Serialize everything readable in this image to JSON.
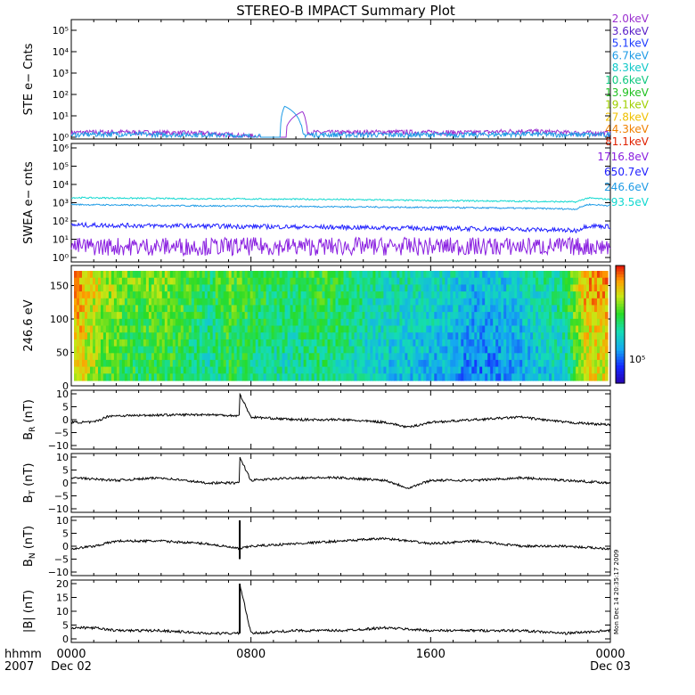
{
  "title": "STEREO-B IMPACT Summary Plot",
  "timestamp": "Mon Dec 14 20:35:17 2009",
  "x_axis": {
    "row_label": "hhmm",
    "year": "2007",
    "ticks": [
      {
        "time": "0000",
        "date": "Dec 02",
        "hours": 0
      },
      {
        "time": "0800",
        "date": "",
        "hours": 8
      },
      {
        "time": "1600",
        "date": "",
        "hours": 16
      },
      {
        "time": "0000",
        "date": "Dec 03",
        "hours": 24
      }
    ],
    "range_hours": [
      0,
      24
    ]
  },
  "legend_ste": {
    "entries": [
      {
        "label": "2.0keV",
        "color": "#9b30d0"
      },
      {
        "label": "3.6keV",
        "color": "#5a20c8"
      },
      {
        "label": "5.1keV",
        "color": "#1e3cff"
      },
      {
        "label": "6.7keV",
        "color": "#1e9be6"
      },
      {
        "label": "8.3keV",
        "color": "#10c8c8"
      },
      {
        "label": "10.6keV",
        "color": "#10c880"
      },
      {
        "label": "13.9keV",
        "color": "#20c020"
      },
      {
        "label": "19.1keV",
        "color": "#a0d000"
      },
      {
        "label": "27.8keV",
        "color": "#f0c000"
      },
      {
        "label": "44.3keV",
        "color": "#f08000"
      },
      {
        "label": "81.1keV",
        "color": "#e02000"
      }
    ]
  },
  "legend_swea": {
    "entries": [
      {
        "label": "1716.8eV",
        "color": "#8a20e0"
      },
      {
        "label": "650.7eV",
        "color": "#2020ff"
      },
      {
        "label": "246.6eV",
        "color": "#1e9be6"
      },
      {
        "label": "93.5eV",
        "color": "#10d8d0"
      }
    ]
  },
  "panels": {
    "ste": {
      "ylabel": "STE e− Cnts",
      "yticks": [
        "10⁰",
        "10¹",
        "10²",
        "10³",
        "10⁴",
        "10⁵"
      ]
    },
    "swea": {
      "ylabel": "SWEA e− cnts",
      "yticks": [
        "10⁰",
        "10¹",
        "10²",
        "10³",
        "10⁴",
        "10⁵",
        "10⁶"
      ]
    },
    "pad": {
      "ylabel": "246.6 eV",
      "yticks": [
        "0",
        "50",
        "100",
        "150"
      ],
      "colorbar_label": "10⁵"
    },
    "br": {
      "ylabel": "B",
      "sub": "R",
      "unit": " (nT)",
      "yticks": [
        "−10",
        "−5",
        "0",
        "5",
        "10"
      ]
    },
    "bt": {
      "ylabel": "B",
      "sub": "T",
      "unit": " (nT)",
      "yticks": [
        "−10",
        "−5",
        "0",
        "5",
        "10"
      ]
    },
    "bn": {
      "ylabel": "B",
      "sub": "N",
      "unit": " (nT)",
      "yticks": [
        "−10",
        "−5",
        "0",
        "5",
        "10"
      ]
    },
    "bmag": {
      "ylabel": "|B| (nT)",
      "yticks": [
        "0",
        "5",
        "10",
        "15",
        "20"
      ]
    }
  },
  "chart_data": [
    {
      "type": "line",
      "title": "STEREO-B IMPACT Summary Plot",
      "ylabel": "STE e− Cnts",
      "yscale": "log",
      "ylim": [
        1,
        100000
      ],
      "x_hours": [
        0,
        2,
        4,
        6,
        8,
        9,
        9.3,
        9.5,
        10.3,
        10.5,
        11,
        14,
        18,
        20,
        22,
        24
      ],
      "series": [
        {
          "name": "2.0keV",
          "values": [
            1.5,
            1.6,
            1.5,
            1.4,
            1.0,
            1.0,
            1.2,
            1.5,
            16,
            1.6,
            1.5,
            1.6,
            1.5,
            1.8,
            1.5,
            1.4
          ]
        },
        {
          "name": "6.7keV",
          "values": [
            1.2,
            1.3,
            1.2,
            1.2,
            1.0,
            1.0,
            1.0,
            28,
            1.2,
            1.2,
            1.2,
            1.2,
            1.2,
            1.3,
            1.2,
            1.2
          ]
        }
      ]
    },
    {
      "type": "line",
      "ylabel": "SWEA e− cnts",
      "yscale": "log",
      "ylim": [
        1,
        1000000
      ],
      "x_hours": [
        0,
        4,
        8,
        12,
        16,
        20,
        22.5,
        23,
        24
      ],
      "series": [
        {
          "name": "93.5eV",
          "values": [
            1900,
            1700,
            1600,
            1500,
            1300,
            1200,
            1100,
            1800,
            1500
          ]
        },
        {
          "name": "246.6eV",
          "values": [
            800,
            700,
            650,
            600,
            550,
            500,
            450,
            800,
            700
          ]
        },
        {
          "name": "650.7eV",
          "values": [
            60,
            55,
            50,
            45,
            40,
            35,
            30,
            55,
            50
          ]
        },
        {
          "name": "1716.8eV",
          "values": [
            4,
            4,
            4,
            4,
            4,
            4,
            4,
            4,
            4
          ]
        }
      ]
    },
    {
      "type": "heatmap",
      "ylabel": "246.6 eV",
      "ylim": [
        0,
        180
      ],
      "colorbar_ticks": [
        "10⁵"
      ],
      "x_hours": [
        0,
        1,
        2,
        3,
        4,
        5,
        6,
        7,
        8,
        9,
        10,
        11,
        12,
        13,
        14,
        15,
        16,
        17,
        18,
        19,
        20,
        21,
        22,
        23,
        24
      ],
      "level": [
        0.85,
        0.72,
        0.62,
        0.6,
        0.62,
        0.58,
        0.48,
        0.6,
        0.55,
        0.5,
        0.5,
        0.55,
        0.5,
        0.45,
        0.42,
        0.4,
        0.38,
        0.35,
        0.3,
        0.32,
        0.35,
        0.42,
        0.45,
        0.8,
        0.82
      ]
    },
    {
      "type": "line",
      "ylabel": "B_R (nT)",
      "ylim": [
        -10,
        10
      ],
      "x_hours": [
        0,
        1,
        1.7,
        2,
        4,
        6,
        7.5,
        7.5,
        8,
        10,
        12,
        14,
        15,
        16,
        18,
        20,
        22,
        24
      ],
      "values": [
        -1,
        -1,
        1.5,
        1.5,
        1.8,
        2.0,
        1.5,
        10,
        1,
        0,
        0,
        -1,
        -3,
        -1,
        0,
        1,
        -1,
        -2
      ]
    },
    {
      "type": "line",
      "ylabel": "B_T (nT)",
      "ylim": [
        -10,
        10
      ],
      "x_hours": [
        0,
        2,
        4,
        6,
        7.5,
        7.5,
        8,
        10,
        12,
        14,
        15,
        16,
        18,
        20,
        22,
        24
      ],
      "values": [
        2,
        1,
        2,
        0,
        0,
        10,
        1,
        2,
        2,
        1,
        -2,
        1,
        1,
        2,
        1,
        0
      ]
    },
    {
      "type": "line",
      "ylabel": "B_N (nT)",
      "ylim": [
        -10,
        10
      ],
      "x_hours": [
        0,
        1,
        2,
        4,
        6,
        7.5,
        8,
        10,
        12,
        14,
        16,
        18,
        20,
        22,
        24
      ],
      "values": [
        -1,
        0,
        2,
        2,
        1,
        -1,
        0,
        1,
        2,
        3,
        1,
        2,
        0,
        0,
        -1
      ]
    },
    {
      "type": "line",
      "ylabel": "|B| (nT)",
      "ylim": [
        0,
        20
      ],
      "x_hours": [
        0,
        1,
        2,
        4,
        6,
        7.5,
        7.5,
        8,
        10,
        12,
        14,
        16,
        18,
        20,
        22,
        24
      ],
      "values": [
        4,
        4,
        3,
        3,
        2,
        2,
        20,
        2,
        3,
        3,
        4,
        3,
        3,
        3,
        2,
        3
      ]
    }
  ]
}
